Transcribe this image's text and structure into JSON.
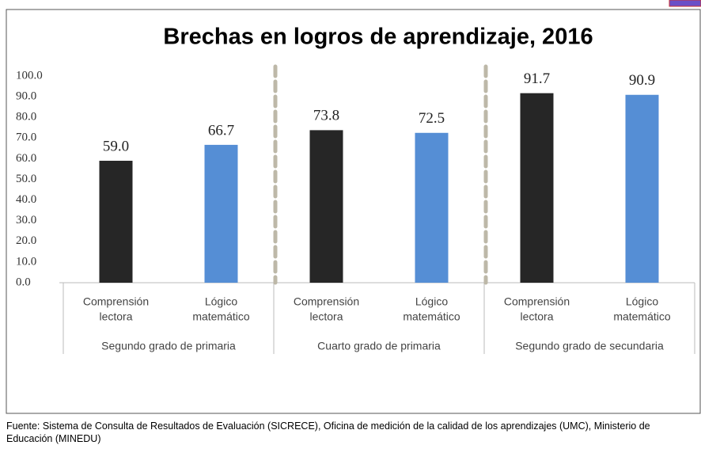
{
  "chart_data": {
    "type": "bar",
    "title": "Brechas en logros de aprendizaje, 2016",
    "categories": [
      [
        "Comprensión",
        "lectora"
      ],
      [
        "Lógico",
        "matemático"
      ],
      [
        "Comprensión",
        "lectora"
      ],
      [
        "Lógico",
        "matemático"
      ],
      [
        "Comprensión",
        "lectora"
      ],
      [
        "Lógico",
        "matemático"
      ]
    ],
    "groups": [
      "Segundo grado de primaria",
      "Cuarto grado de primaria",
      "Segundo grado de secundaria"
    ],
    "values": [
      59.0,
      66.7,
      73.8,
      72.5,
      91.7,
      90.9
    ],
    "value_labels": [
      "59.0",
      "66.7",
      "73.8",
      "72.5",
      "91.7",
      "90.9"
    ],
    "colors": [
      "#262626",
      "#558ed5",
      "#262626",
      "#558ed5",
      "#262626",
      "#558ed5"
    ],
    "ylim": [
      0,
      100
    ],
    "yticks": [
      {
        "value": 0,
        "label": "0.0"
      },
      {
        "value": 10,
        "label": "10.0"
      },
      {
        "value": 20,
        "label": "20.0"
      },
      {
        "value": 30,
        "label": "30.0"
      },
      {
        "value": 40,
        "label": "40.0"
      },
      {
        "value": 50,
        "label": "50.0"
      },
      {
        "value": 60,
        "label": "60.0"
      },
      {
        "value": 70,
        "label": "70.0"
      },
      {
        "value": 80,
        "label": "80.0"
      },
      {
        "value": 90,
        "label": "90.0"
      },
      {
        "value": 100,
        "label": "100.0"
      }
    ],
    "grid": false,
    "source": "Fuente: Sistema de Consulta de Resultados de Evaluación (SICRECE), Oficina de medición de la calidad de los aprendizajes (UMC), Ministerio de Educación (MINEDU)"
  }
}
